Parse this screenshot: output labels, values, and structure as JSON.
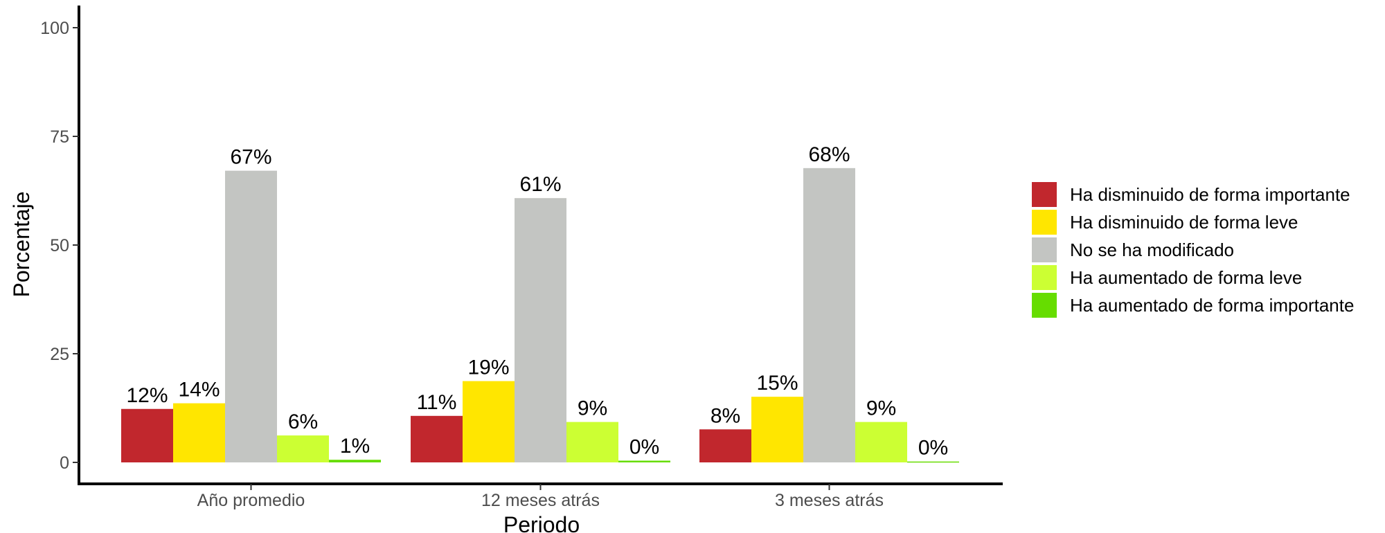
{
  "chart_data": {
    "type": "bar",
    "xlabel": "Periodo",
    "ylabel": "Porcentaje",
    "ylim": [
      0,
      100
    ],
    "yticks": [
      0,
      25,
      50,
      75,
      100
    ],
    "categories": [
      "Año promedio",
      "12 meses atrás",
      "3 meses atrás"
    ],
    "series": [
      {
        "name": "Ha disminuido de forma importante",
        "color": "#c1272d",
        "values": [
          12.3,
          10.7,
          7.6
        ],
        "labels": [
          "12%",
          "11%",
          "8%"
        ]
      },
      {
        "name": "Ha disminuido de forma leve",
        "color": "#ffe600",
        "values": [
          13.6,
          18.7,
          15.1
        ],
        "labels": [
          "14%",
          "19%",
          "15%"
        ]
      },
      {
        "name": "No se ha modificado",
        "color": "#c3c5c2",
        "values": [
          67.1,
          60.8,
          67.7
        ],
        "labels": [
          "67%",
          "61%",
          "68%"
        ]
      },
      {
        "name": "Ha aumentado de forma leve",
        "color": "#ccff33",
        "values": [
          6.2,
          9.3,
          9.3
        ],
        "labels": [
          "6%",
          "9%",
          "9%"
        ]
      },
      {
        "name": "Ha aumentado de forma importante",
        "color": "#66dd00",
        "values": [
          0.6,
          0.4,
          0.2
        ],
        "labels": [
          "1%",
          "0%",
          "0%"
        ]
      }
    ],
    "legend_position": "right",
    "grid": false
  }
}
